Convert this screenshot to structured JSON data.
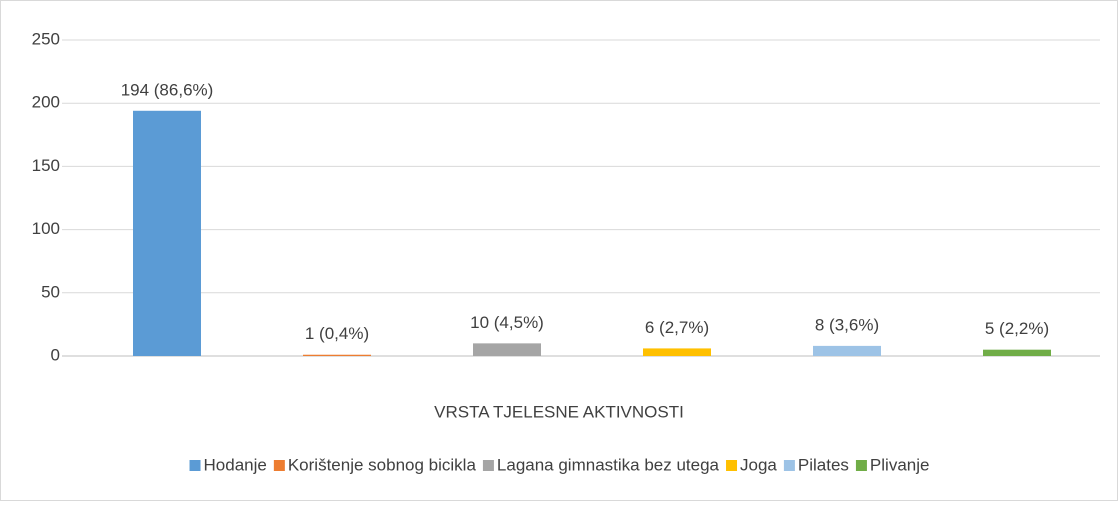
{
  "chart_data": {
    "type": "bar",
    "x_label": "VRSTA TJELESNE AKTIVNOSTI",
    "categories": [
      "VRSTA TJELESNE AKTIVNOSTI"
    ],
    "series": [
      {
        "name": "Hodanje",
        "color": "#5b9bd5",
        "values": [
          194
        ],
        "value_labels": [
          "194 (86,6%)"
        ]
      },
      {
        "name": "Korištenje sobnog bicikla",
        "color": "#ed7d31",
        "values": [
          1
        ],
        "value_labels": [
          "1 (0,4%)"
        ]
      },
      {
        "name": "Lagana gimnastika bez utega",
        "color": "#a5a5a5",
        "values": [
          10
        ],
        "value_labels": [
          "10 (4,5%)"
        ]
      },
      {
        "name": "Joga",
        "color": "#ffc000",
        "values": [
          6
        ],
        "value_labels": [
          "6 (2,7%)"
        ]
      },
      {
        "name": "Pilates",
        "color": "#9dc3e6",
        "values": [
          8
        ],
        "value_labels": [
          "8 (3,6%)"
        ]
      },
      {
        "name": "Plivanje",
        "color": "#70ad47",
        "values": [
          5
        ],
        "value_labels": [
          "5 (2,2%)"
        ]
      }
    ],
    "ylim": [
      0,
      250
    ],
    "yticks": [
      0,
      50,
      100,
      150,
      200,
      250
    ],
    "grid": true,
    "legend": "bottom"
  }
}
